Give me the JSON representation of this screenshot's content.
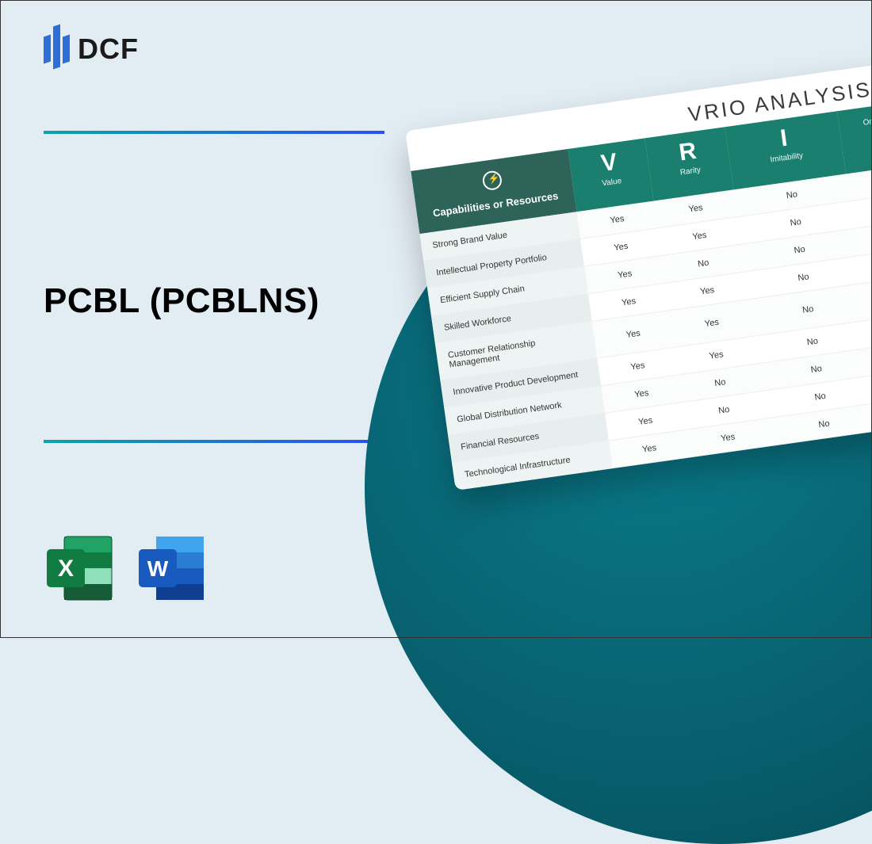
{
  "logo": {
    "text": "DCF"
  },
  "title": "PCBL (PCBLNS)",
  "rules": {
    "gradient_start": "#0aa4a8",
    "gradient_end": "#2b4ff0"
  },
  "background_color": "#e2ecf3",
  "circle_gradient": {
    "inner": "#0a7c8c",
    "mid": "#075a68",
    "outer": "#05424d"
  },
  "vrio": {
    "title": "VRIO ANALYSIS",
    "header_bg_first": "#2d6358",
    "header_bg": "#1a7f6e",
    "capabilities_label": "Capabilities or Resources",
    "columns": [
      {
        "letter": "V",
        "label": "Value"
      },
      {
        "letter": "R",
        "label": "Rarity"
      },
      {
        "letter": "I",
        "label": "Imitability"
      },
      {
        "letter": "",
        "label": "Org"
      }
    ],
    "rows": [
      {
        "name": "Strong Brand Value",
        "v": "Yes",
        "r": "Yes",
        "i": "No",
        "o": ""
      },
      {
        "name": "Intellectual Property Portfolio",
        "v": "Yes",
        "r": "Yes",
        "i": "No",
        "o": ""
      },
      {
        "name": "Efficient Supply Chain",
        "v": "Yes",
        "r": "No",
        "i": "No",
        "o": ""
      },
      {
        "name": "Skilled Workforce",
        "v": "Yes",
        "r": "Yes",
        "i": "No",
        "o": ""
      },
      {
        "name": "Customer Relationship Management",
        "v": "Yes",
        "r": "Yes",
        "i": "No",
        "o": ""
      },
      {
        "name": "Innovative Product Development",
        "v": "Yes",
        "r": "Yes",
        "i": "No",
        "o": ""
      },
      {
        "name": "Global Distribution Network",
        "v": "Yes",
        "r": "No",
        "i": "No",
        "o": ""
      },
      {
        "name": "Financial Resources",
        "v": "Yes",
        "r": "No",
        "i": "No",
        "o": ""
      },
      {
        "name": "Technological Infrastructure",
        "v": "Yes",
        "r": "Yes",
        "i": "No",
        "o": ""
      }
    ]
  },
  "file_icons": {
    "excel": {
      "letter": "X",
      "bg_dark": "#185c37",
      "bg_light": "#21a366",
      "badge": "#107c41"
    },
    "word": {
      "letter": "W",
      "bg_dark": "#103f91",
      "bg_light": "#2b7cd3",
      "badge": "#185abd"
    }
  }
}
